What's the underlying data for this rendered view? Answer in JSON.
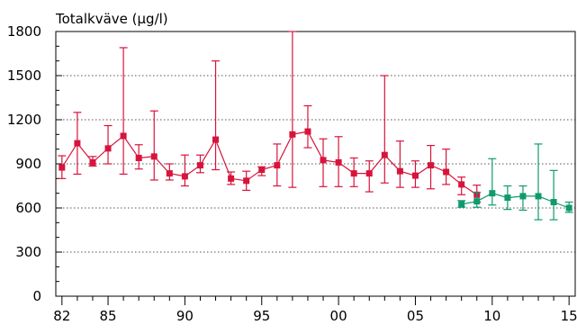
{
  "chart_data": {
    "type": "line",
    "title": "Totalkväve (µg/l)",
    "xlabel": "",
    "ylabel": "",
    "xlim": [
      1981.6,
      2015.4
    ],
    "ylim": [
      0,
      1800
    ],
    "grid": "horizontal-dotted",
    "x_ticks": [
      {
        "value": 1982,
        "label": "82"
      },
      {
        "value": 1985,
        "label": "85"
      },
      {
        "value": 1990,
        "label": "90"
      },
      {
        "value": 1995,
        "label": "95"
      },
      {
        "value": 2000,
        "label": "00"
      },
      {
        "value": 2005,
        "label": "05"
      },
      {
        "value": 2010,
        "label": "10"
      },
      {
        "value": 2015,
        "label": "15"
      }
    ],
    "y_ticks": [
      {
        "value": 0,
        "label": "0"
      },
      {
        "value": 300,
        "label": "300"
      },
      {
        "value": 600,
        "label": "600"
      },
      {
        "value": 900,
        "label": "900"
      },
      {
        "value": 1200,
        "label": "1200"
      },
      {
        "value": 1500,
        "label": "1500"
      },
      {
        "value": 1800,
        "label": "1800"
      }
    ],
    "series": [
      {
        "color": "#d7143c",
        "x": [
          1982,
          1983,
          1984,
          1985,
          1986,
          1987,
          1988,
          1989,
          1990,
          1991,
          1992,
          1993,
          1994,
          1995,
          1996,
          1997,
          1998,
          1999,
          2000,
          2001,
          2002,
          2003,
          2004,
          2005,
          2006,
          2007,
          2008,
          2009
        ],
        "y": [
          875,
          1040,
          910,
          1005,
          1090,
          940,
          950,
          835,
          815,
          890,
          1065,
          800,
          785,
          860,
          890,
          1100,
          1120,
          925,
          910,
          835,
          835,
          960,
          850,
          820,
          890,
          845,
          760,
          690
        ],
        "y_low": [
          800,
          830,
          885,
          900,
          830,
          865,
          790,
          790,
          750,
          840,
          860,
          760,
          720,
          820,
          750,
          740,
          1010,
          745,
          745,
          745,
          710,
          770,
          740,
          740,
          730,
          760,
          690,
          640
        ],
        "y_high": [
          955,
          1250,
          950,
          1160,
          1690,
          1030,
          1260,
          900,
          960,
          960,
          1600,
          845,
          850,
          880,
          1035,
          1800,
          1295,
          1070,
          1085,
          940,
          920,
          1500,
          1055,
          920,
          1025,
          1000,
          810,
          755
        ]
      },
      {
        "color": "#0f9a6e",
        "x": [
          2008,
          2009,
          2010,
          2011,
          2012,
          2013,
          2014,
          2015
        ],
        "y": [
          625,
          645,
          700,
          670,
          680,
          680,
          640,
          600
        ],
        "y_low": [
          605,
          605,
          620,
          590,
          585,
          520,
          520,
          570
        ],
        "y_high": [
          650,
          705,
          935,
          750,
          750,
          1035,
          855,
          640
        ]
      }
    ]
  }
}
